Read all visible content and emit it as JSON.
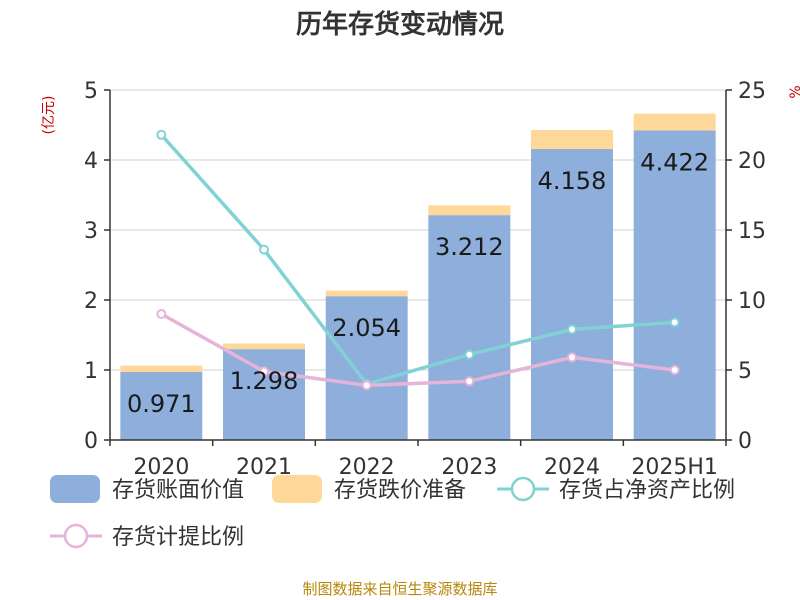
{
  "chart_data": {
    "type": "bar",
    "title": "历年存货变动情况",
    "categories": [
      "2020",
      "2021",
      "2022",
      "2023",
      "2024",
      "2025H1"
    ],
    "left_axis": {
      "unit": "(亿元)",
      "ylim": [
        0,
        5
      ],
      "ticks": [
        "0",
        "1",
        "2",
        "3",
        "4",
        "5"
      ]
    },
    "right_axis": {
      "unit": "%",
      "ylim": [
        0,
        25
      ],
      "ticks": [
        "0",
        "5",
        "10",
        "15",
        "20",
        "25"
      ]
    },
    "series": [
      {
        "name": "存货账面价值",
        "kind": "bar",
        "axis": "left",
        "color": "#8eaedc",
        "values": [
          0.971,
          1.298,
          2.054,
          3.212,
          4.158,
          4.422
        ],
        "labels": [
          "0.971",
          "1.298",
          "2.054",
          "3.212",
          "4.158",
          "4.422"
        ]
      },
      {
        "name": "存货跌价准备",
        "kind": "bar-stacked",
        "axis": "left",
        "color": "#fed899",
        "values": [
          0.09,
          0.08,
          0.08,
          0.14,
          0.27,
          0.24
        ]
      },
      {
        "name": "存货占净资产比例",
        "kind": "line",
        "axis": "right",
        "color": "#80d2d4",
        "values": [
          21.8,
          13.6,
          4.0,
          6.1,
          7.9,
          8.4
        ]
      },
      {
        "name": "存货计提比例",
        "kind": "line",
        "axis": "right",
        "color": "#e6b3d9",
        "values": [
          9.0,
          4.9,
          3.9,
          4.2,
          5.9,
          5.0
        ]
      }
    ],
    "grid": true,
    "legend_position": "bottom"
  },
  "source": "制图数据来自恒生聚源数据库"
}
